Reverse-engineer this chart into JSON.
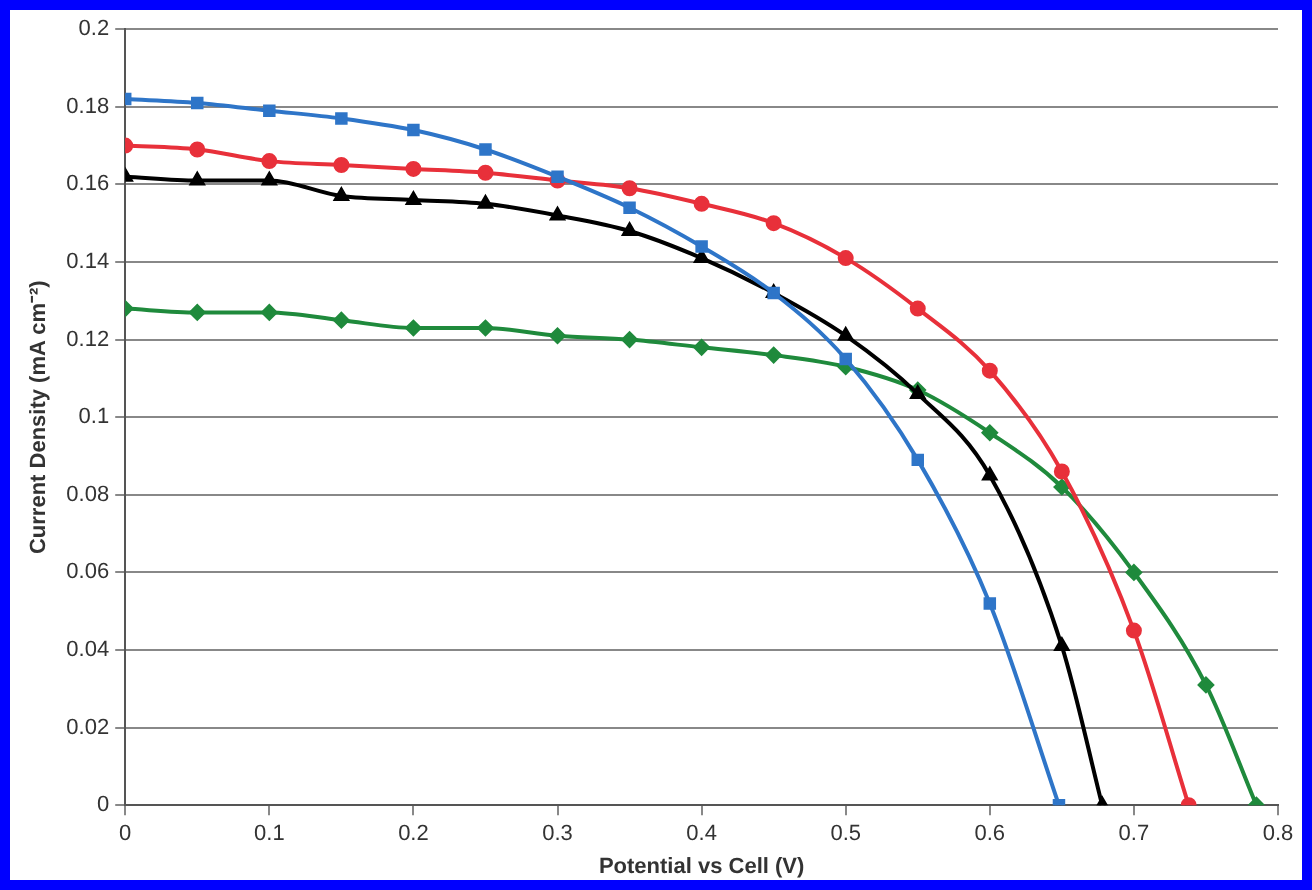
{
  "chart_data": {
    "type": "line",
    "xlabel": "Potential vs Cell (V)",
    "ylabel": "Current Density (mA cm⁻²)",
    "xlim": [
      0,
      0.8
    ],
    "xticks": [
      0,
      0.1,
      0.2,
      0.3,
      0.4,
      0.5,
      0.6,
      0.7,
      0.8
    ],
    "ylim": [
      0,
      0.2
    ],
    "yticks": [
      0,
      0.02,
      0.04,
      0.06,
      0.08,
      0.1,
      0.12,
      0.14,
      0.16,
      0.18,
      0.2
    ],
    "grid": "y",
    "legend": false,
    "series": [
      {
        "color": "#2e75c8",
        "marker": "square",
        "x": [
          0,
          0.05,
          0.1,
          0.15,
          0.2,
          0.25,
          0.3,
          0.35,
          0.4,
          0.45,
          0.5,
          0.55,
          0.6,
          0.648
        ],
        "values": [
          0.182,
          0.181,
          0.179,
          0.177,
          0.174,
          0.169,
          0.162,
          0.154,
          0.144,
          0.132,
          0.115,
          0.089,
          0.052,
          0
        ]
      },
      {
        "color": "#e8303a",
        "marker": "circle",
        "x": [
          0,
          0.05,
          0.1,
          0.15,
          0.2,
          0.25,
          0.3,
          0.35,
          0.4,
          0.45,
          0.5,
          0.55,
          0.6,
          0.65,
          0.7,
          0.738
        ],
        "values": [
          0.17,
          0.169,
          0.166,
          0.165,
          0.164,
          0.163,
          0.161,
          0.159,
          0.155,
          0.15,
          0.141,
          0.128,
          0.112,
          0.086,
          0.045,
          0
        ]
      },
      {
        "color": "#000000",
        "marker": "triangle",
        "x": [
          0,
          0.05,
          0.1,
          0.15,
          0.2,
          0.25,
          0.3,
          0.35,
          0.4,
          0.45,
          0.5,
          0.55,
          0.6,
          0.65,
          0.678
        ],
        "values": [
          0.162,
          0.161,
          0.161,
          0.157,
          0.156,
          0.155,
          0.152,
          0.148,
          0.141,
          0.132,
          0.121,
          0.106,
          0.085,
          0.041,
          0
        ]
      },
      {
        "color": "#1f8a3c",
        "marker": "diamond",
        "x": [
          0,
          0.05,
          0.1,
          0.15,
          0.2,
          0.25,
          0.3,
          0.35,
          0.4,
          0.45,
          0.5,
          0.55,
          0.6,
          0.65,
          0.7,
          0.75,
          0.785
        ],
        "values": [
          0.128,
          0.127,
          0.127,
          0.125,
          0.123,
          0.123,
          0.121,
          0.12,
          0.118,
          0.116,
          0.113,
          0.107,
          0.096,
          0.082,
          0.06,
          0.031,
          0
        ]
      }
    ]
  }
}
